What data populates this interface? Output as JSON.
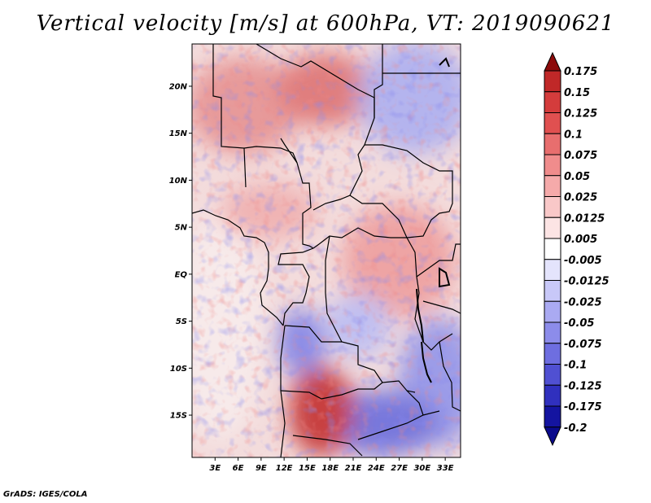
{
  "chart_data": {
    "type": "heatmap",
    "title": "Vertical velocity [m/s] at 600hPa, VT: 2019090621",
    "variable": "Vertical velocity",
    "units": "m/s",
    "level": "600hPa",
    "valid_time": "2019090621",
    "xlabel": "",
    "ylabel": "",
    "xlim": [
      0,
      35
    ],
    "ylim": [
      -19.5,
      24.5
    ],
    "x_ticks": [
      {
        "value": 3,
        "label": "3E"
      },
      {
        "value": 6,
        "label": "6E"
      },
      {
        "value": 9,
        "label": "9E"
      },
      {
        "value": 12,
        "label": "12E"
      },
      {
        "value": 15,
        "label": "15E"
      },
      {
        "value": 18,
        "label": "18E"
      },
      {
        "value": 21,
        "label": "21E"
      },
      {
        "value": 24,
        "label": "24E"
      },
      {
        "value": 27,
        "label": "27E"
      },
      {
        "value": 30,
        "label": "30E"
      },
      {
        "value": 33,
        "label": "33E"
      }
    ],
    "y_ticks": [
      {
        "value": 20,
        "label": "20N"
      },
      {
        "value": 15,
        "label": "15N"
      },
      {
        "value": 10,
        "label": "10N"
      },
      {
        "value": 5,
        "label": "5N"
      },
      {
        "value": 0,
        "label": "EQ"
      },
      {
        "value": -5,
        "label": "5S"
      },
      {
        "value": -10,
        "label": "10S"
      },
      {
        "value": -15,
        "label": "15S"
      }
    ],
    "colorbar": {
      "levels": [
        {
          "label": "0.175",
          "color": "#a01414"
        },
        {
          "label": "0.15",
          "color": "#c02828"
        },
        {
          "label": "0.125",
          "color": "#d43c3c"
        },
        {
          "label": "0.1",
          "color": "#e05050"
        },
        {
          "label": "0.075",
          "color": "#e86e6e"
        },
        {
          "label": "0.05",
          "color": "#f08c8c"
        },
        {
          "label": "0.025",
          "color": "#f5aaaa"
        },
        {
          "label": "0.0125",
          "color": "#f9c8c8"
        },
        {
          "label": "0.005",
          "color": "#fce4e4"
        },
        {
          "label": "-0.005",
          "color": "#ffffff"
        },
        {
          "label": "-0.0125",
          "color": "#e4e4fc"
        },
        {
          "label": "-0.025",
          "color": "#c8c8f8"
        },
        {
          "label": "-0.05",
          "color": "#aaaaf2"
        },
        {
          "label": "-0.075",
          "color": "#8c8cea"
        },
        {
          "label": "-0.1",
          "color": "#6e6ee0"
        },
        {
          "label": "-0.125",
          "color": "#5050d2"
        },
        {
          "label": "-0.175",
          "color": "#3030be"
        },
        {
          "label": "-0.2",
          "color": "#1414a0"
        }
      ],
      "top_color": "#8c0a0a",
      "bottom_color": "#0a0a8c"
    }
  },
  "footer": {
    "credit": "GrADS: IGES/COLA"
  }
}
